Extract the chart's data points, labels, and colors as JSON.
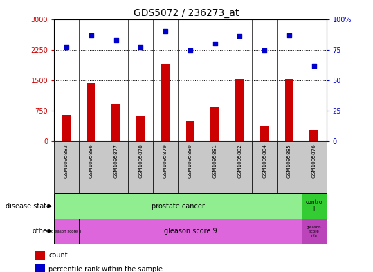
{
  "title": "GDS5072 / 236273_at",
  "samples": [
    "GSM1095883",
    "GSM1095886",
    "GSM1095877",
    "GSM1095878",
    "GSM1095879",
    "GSM1095880",
    "GSM1095881",
    "GSM1095882",
    "GSM1095884",
    "GSM1095885",
    "GSM1095876"
  ],
  "counts": [
    650,
    1430,
    920,
    640,
    1900,
    500,
    850,
    1530,
    380,
    1540,
    270
  ],
  "percentiles": [
    77,
    87,
    83,
    77,
    90,
    74,
    80,
    86,
    74,
    87,
    62
  ],
  "ylim_left": [
    0,
    3000
  ],
  "ylim_right": [
    0,
    100
  ],
  "yticks_left": [
    0,
    750,
    1500,
    2250,
    3000
  ],
  "yticks_right": [
    0,
    25,
    50,
    75,
    100
  ],
  "bar_color": "#cc0000",
  "dot_color": "#0000cc",
  "bg_color": "#c8c8c8",
  "green_light": "#90ee90",
  "green_dark": "#33cc33",
  "magenta_light": "#dd66dd",
  "magenta_dark": "#bb44bb",
  "white": "#ffffff"
}
